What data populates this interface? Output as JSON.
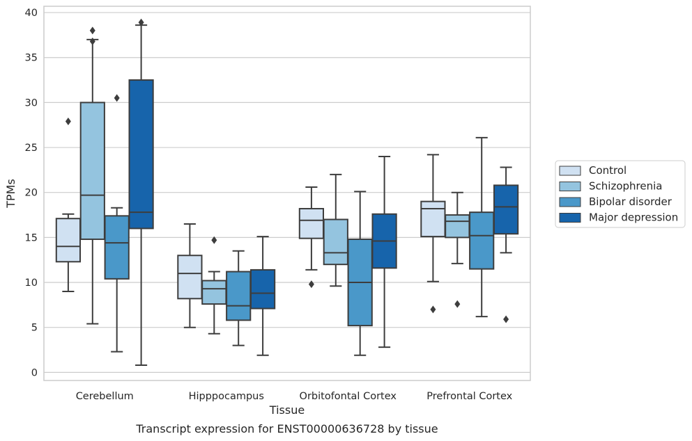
{
  "chart_data": {
    "type": "box",
    "title": "",
    "caption": "Transcript expression for ENST00000636728 by tissue",
    "xlabel": "Tissue",
    "ylabel": "TPMs",
    "ylim": [
      -0.9,
      40.7
    ],
    "yticks": [
      0,
      5,
      10,
      15,
      20,
      25,
      30,
      35,
      40
    ],
    "grid": "horizontal",
    "legend_position": "right",
    "categories": [
      "Cerebellum",
      "Hipppocampus",
      "Orbitofontal Cortex",
      "Prefrontal Cortex"
    ],
    "series": [
      {
        "name": "Control",
        "color": "#d0e1f2",
        "boxes": [
          {
            "whislo": 9.0,
            "q1": 12.3,
            "med": 14.0,
            "q3": 17.1,
            "whishi": 17.6,
            "fliers": [
              27.9
            ]
          },
          {
            "whislo": 5.0,
            "q1": 8.2,
            "med": 11.0,
            "q3": 13.0,
            "whishi": 16.5,
            "fliers": []
          },
          {
            "whislo": 11.4,
            "q1": 14.9,
            "med": 16.9,
            "q3": 18.2,
            "whishi": 20.6,
            "fliers": [
              9.8
            ]
          },
          {
            "whislo": 10.1,
            "q1": 15.1,
            "med": 18.2,
            "q3": 19.0,
            "whishi": 24.2,
            "fliers": [
              7.0
            ]
          }
        ]
      },
      {
        "name": "Schizophrenia",
        "color": "#94c4df",
        "boxes": [
          {
            "whislo": 5.4,
            "q1": 14.8,
            "med": 19.7,
            "q3": 30.0,
            "whishi": 37.0,
            "fliers": [
              36.8,
              38.0
            ]
          },
          {
            "whislo": 4.3,
            "q1": 7.6,
            "med": 9.3,
            "q3": 10.2,
            "whishi": 11.2,
            "fliers": [
              14.7
            ]
          },
          {
            "whislo": 9.6,
            "q1": 12.0,
            "med": 13.3,
            "q3": 17.0,
            "whishi": 22.0,
            "fliers": []
          },
          {
            "whislo": 12.1,
            "q1": 15.0,
            "med": 16.8,
            "q3": 17.5,
            "whishi": 20.0,
            "fliers": [
              7.6
            ]
          }
        ]
      },
      {
        "name": "Bipolar disorder",
        "color": "#4a98c9",
        "boxes": [
          {
            "whislo": 2.3,
            "q1": 10.4,
            "med": 14.4,
            "q3": 17.4,
            "whishi": 18.3,
            "fliers": [
              30.5
            ]
          },
          {
            "whislo": 3.0,
            "q1": 5.8,
            "med": 7.4,
            "q3": 11.2,
            "whishi": 13.5,
            "fliers": []
          },
          {
            "whislo": 1.9,
            "q1": 5.2,
            "med": 10.0,
            "q3": 14.8,
            "whishi": 20.1,
            "fliers": []
          },
          {
            "whislo": 6.2,
            "q1": 11.5,
            "med": 15.2,
            "q3": 17.8,
            "whishi": 26.1,
            "fliers": []
          }
        ]
      },
      {
        "name": "Major depression",
        "color": "#1764ab",
        "boxes": [
          {
            "whislo": 0.8,
            "q1": 16.0,
            "med": 17.8,
            "q3": 32.5,
            "whishi": 38.6,
            "fliers": [
              38.9
            ]
          },
          {
            "whislo": 1.9,
            "q1": 7.1,
            "med": 8.8,
            "q3": 11.4,
            "whishi": 15.1,
            "fliers": []
          },
          {
            "whislo": 2.8,
            "q1": 11.6,
            "med": 14.6,
            "q3": 17.6,
            "whishi": 24.0,
            "fliers": []
          },
          {
            "whislo": 13.3,
            "q1": 15.4,
            "med": 18.4,
            "q3": 20.8,
            "whishi": 22.8,
            "fliers": [
              5.9
            ]
          }
        ]
      }
    ]
  }
}
